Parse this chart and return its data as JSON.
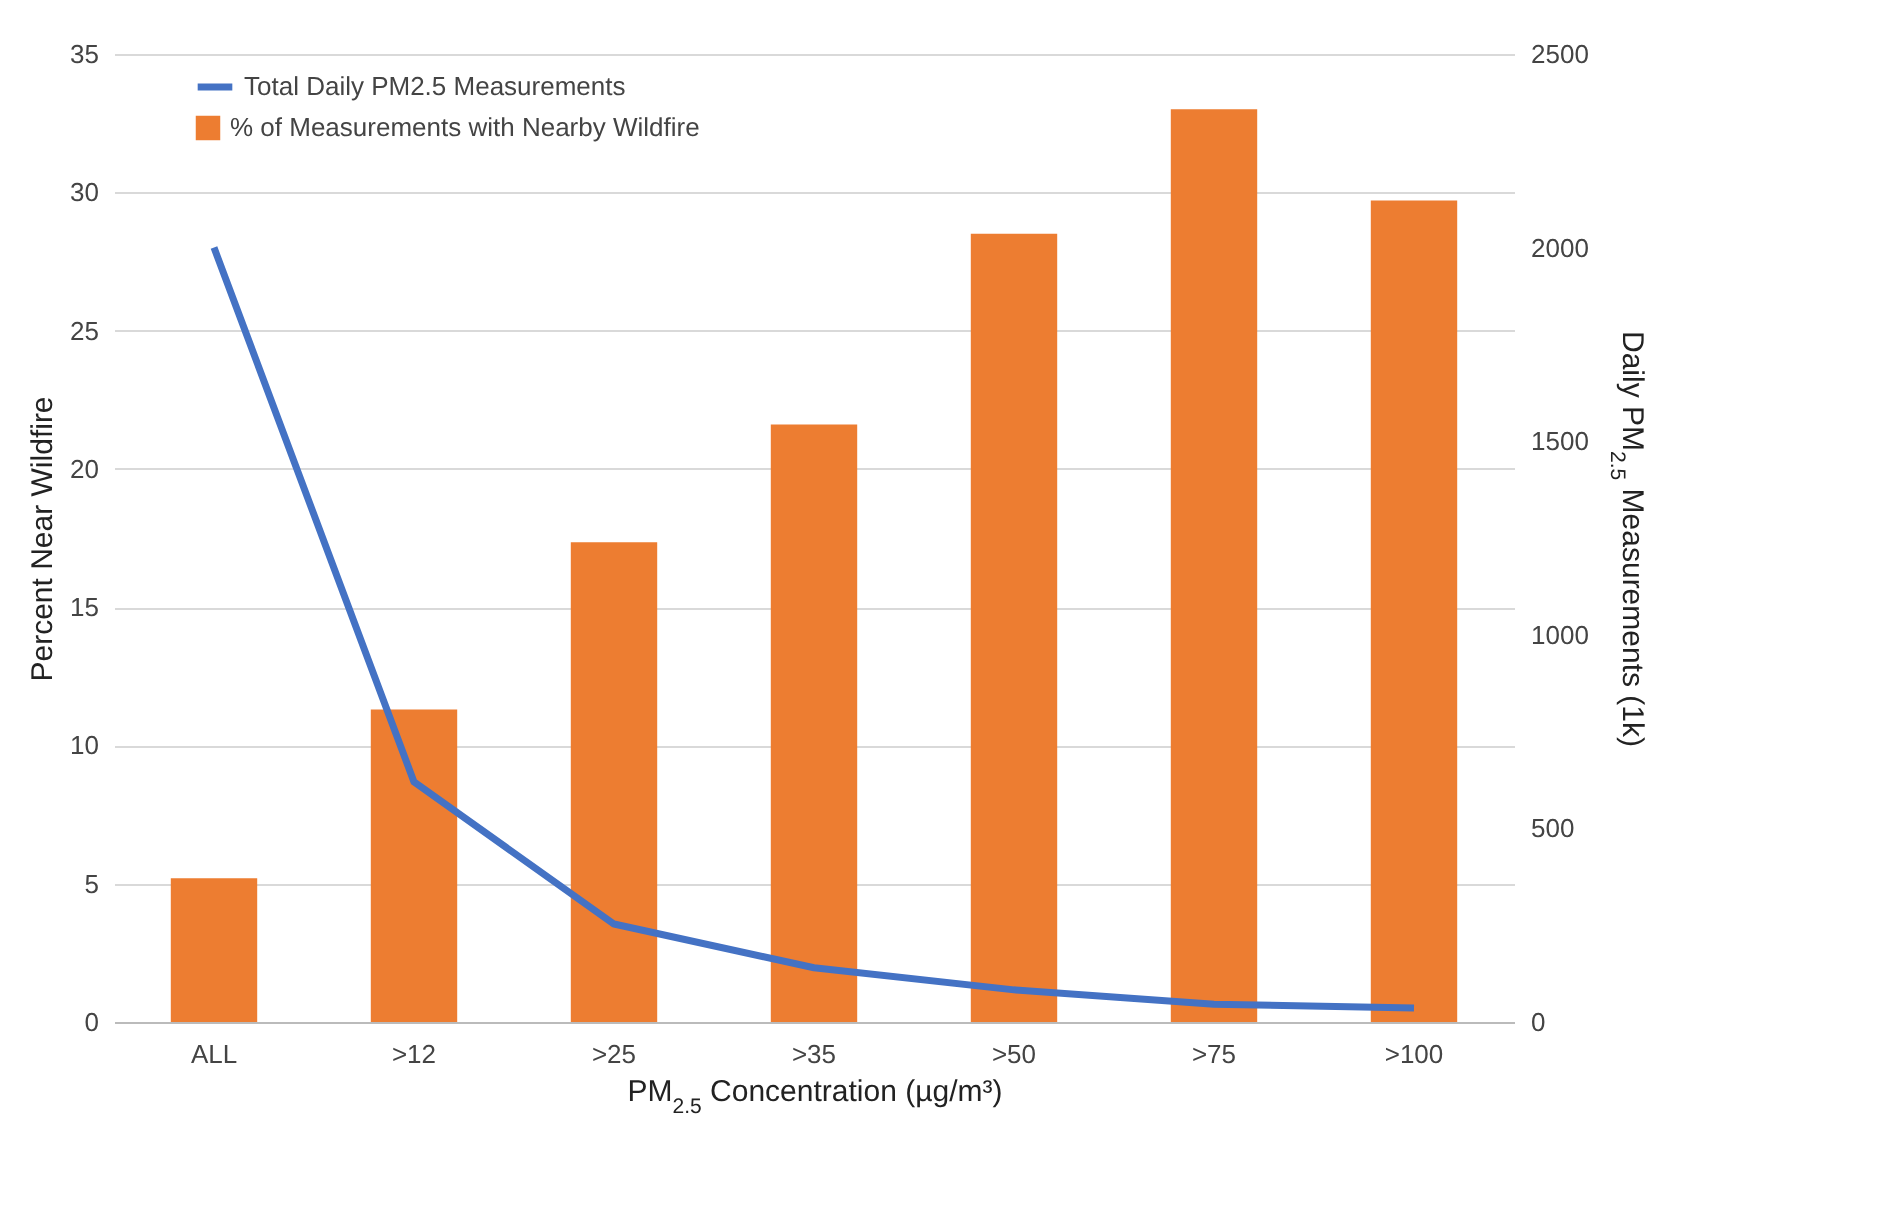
{
  "chart_data": {
    "type": "bar",
    "categories": [
      "ALL",
      ">12",
      ">25",
      ">35",
      ">50",
      ">75",
      ">100"
    ],
    "series": [
      {
        "name": "Total Daily PM2.5 Measurements",
        "type": "line",
        "axis": "y2",
        "color": "#4472c4",
        "values": [
          2000,
          620,
          253,
          140,
          83,
          46,
          36
        ]
      },
      {
        "name": "% of Measurements with Nearby Wildfire",
        "color": "#ed7d31",
        "values": [
          5.2,
          11.3,
          17.35,
          21.6,
          28.5,
          33.0,
          29.7
        ]
      }
    ],
    "xlabel": "PM$_{2.5}$ Concentration (µg/m³)",
    "ylabel": "Percent Near Wildfire",
    "y2label": "Daily PM$_{2.5}$ Measurements (1k)",
    "ylim": [
      0,
      35
    ],
    "yticks": [
      0,
      5,
      10,
      15,
      20,
      25,
      30,
      35
    ],
    "y2lim": [
      0,
      2500
    ],
    "y2ticks": [
      0,
      500,
      1000,
      1500,
      2000,
      2500
    ],
    "grid": "y",
    "legend": "top left",
    "marker": "none",
    "line_style": "solid"
  }
}
